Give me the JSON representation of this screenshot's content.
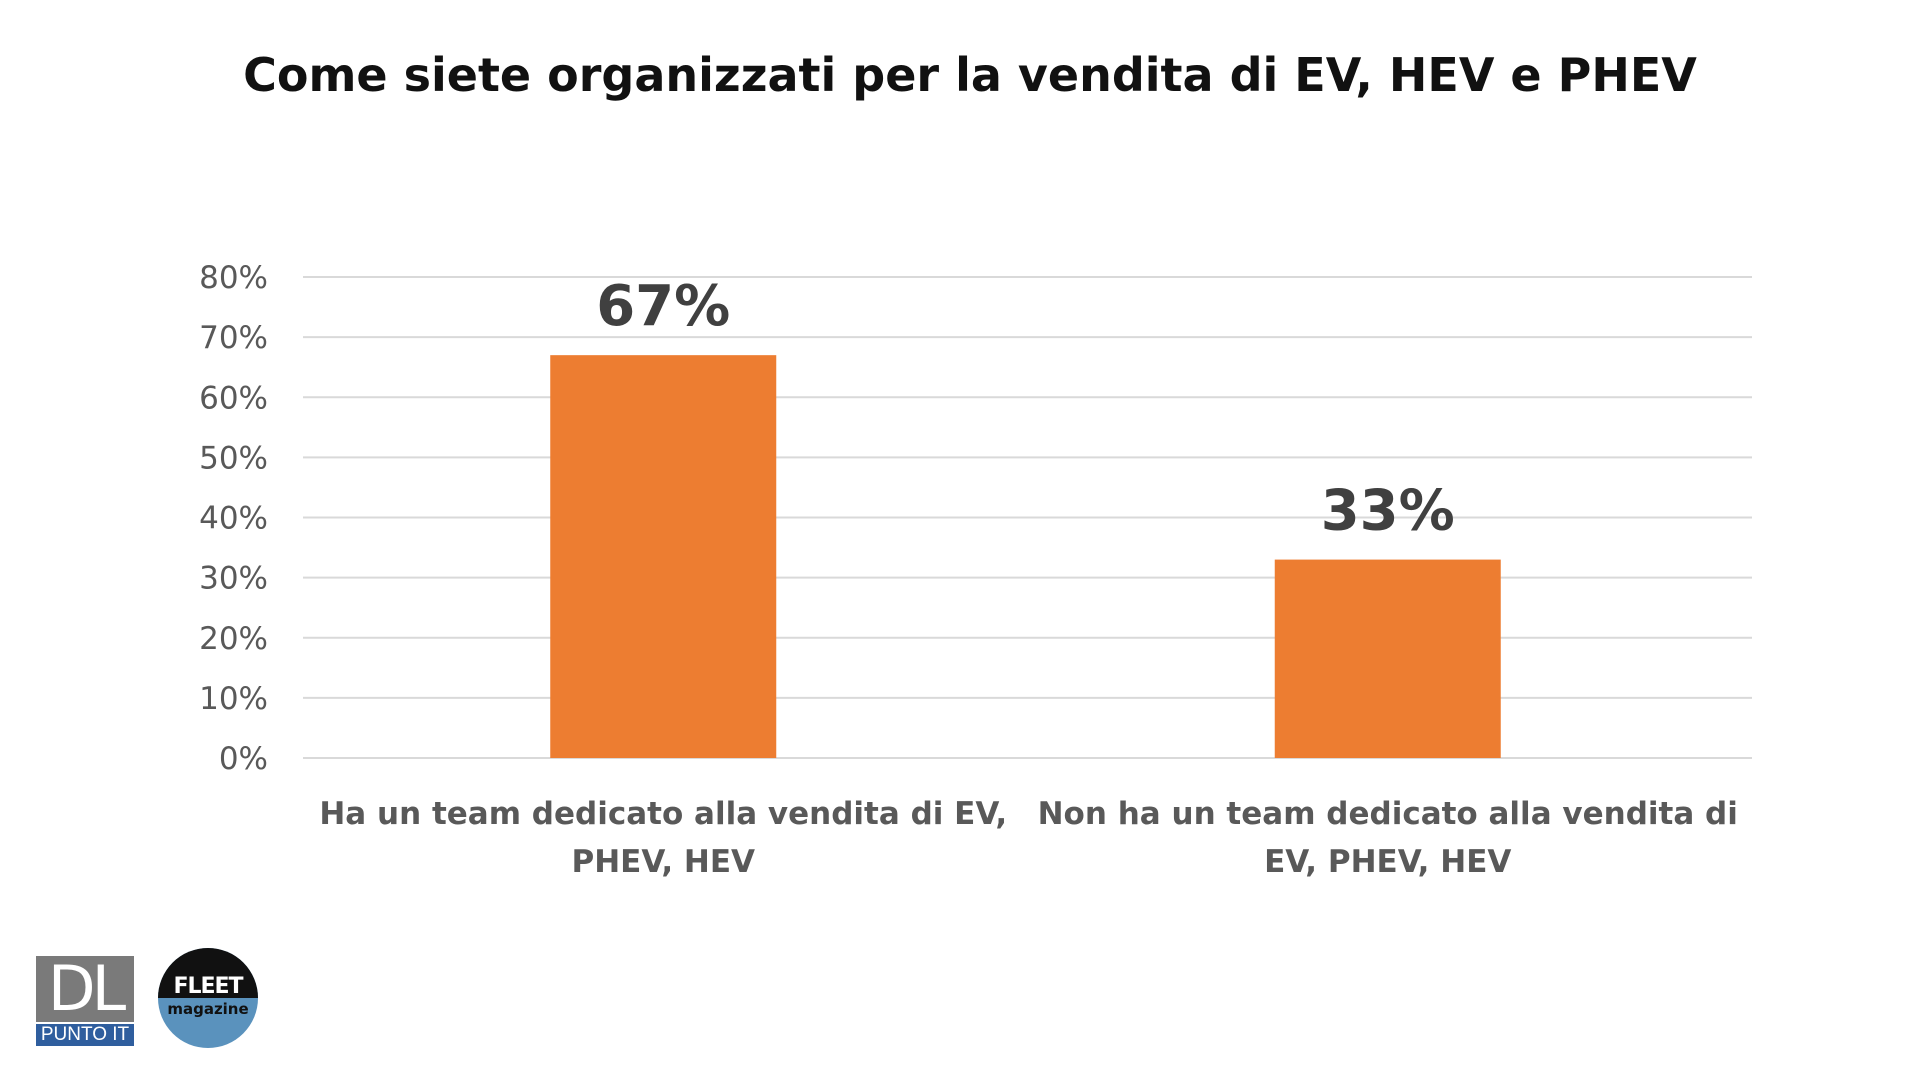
{
  "chart_data": {
    "type": "bar",
    "title": "Come siete organizzati per la vendita di EV, HEV e PHEV",
    "categories": [
      "Ha un team dedicato alla vendita di EV, PHEV, HEV",
      "Non ha un team dedicato alla vendita di EV, PHEV, HEV"
    ],
    "category_lines": [
      [
        "Ha un team dedicato alla vendita di EV,",
        "PHEV, HEV"
      ],
      [
        "Non ha un team dedicato alla vendita di",
        "EV, PHEV, HEV"
      ]
    ],
    "values": [
      67,
      33
    ],
    "data_labels": [
      "67%",
      "33%"
    ],
    "yticks": [
      "0%",
      "10%",
      "20%",
      "30%",
      "40%",
      "50%",
      "60%",
      "70%",
      "80%"
    ],
    "ylim": [
      0,
      80
    ],
    "grid": true,
    "bar_color": "#ED7D31"
  },
  "logos": {
    "dl_text": "DL",
    "dl_sub": "PUNTO IT",
    "fleet_text": "FLEET",
    "fleet_sub": "magazine"
  }
}
